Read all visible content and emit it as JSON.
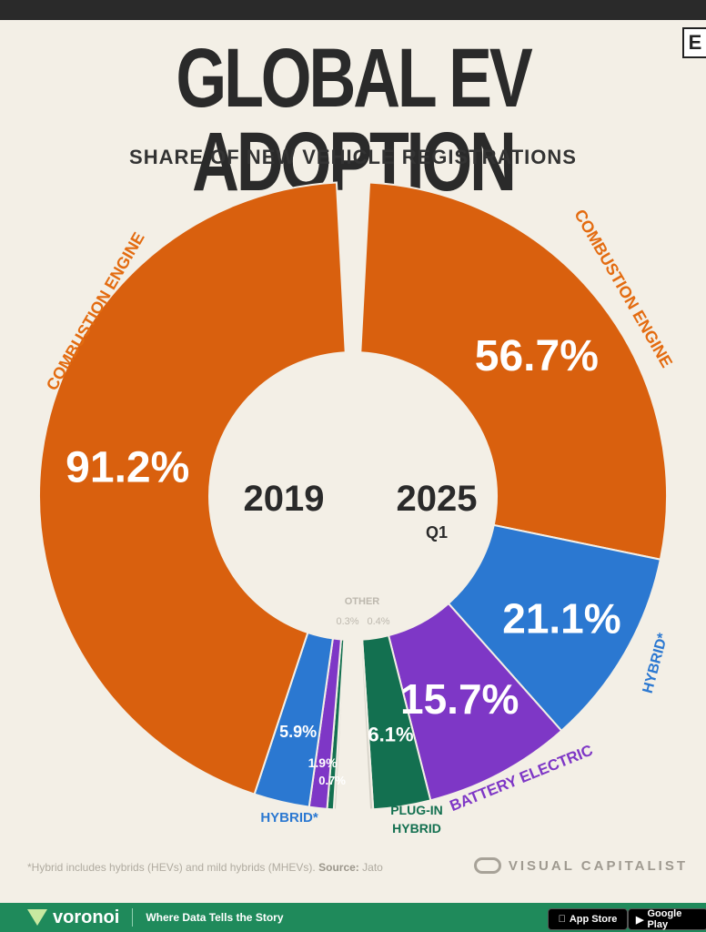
{
  "header": {
    "title": "GLOBAL EV ADOPTION",
    "subtitle": "SHARE OF NEW VEHICLE REGISTRATIONS",
    "corner_letter": "E"
  },
  "chart_data": [
    {
      "type": "pie",
      "label": "2019",
      "sublabel": "",
      "slices": [
        {
          "name": "COMBUSTION ENGINE",
          "value": 91.2,
          "value_label": "91.2%",
          "color": "#d9600e"
        },
        {
          "name": "HYBRID*",
          "value": 5.9,
          "value_label": "5.9%",
          "color": "#2b78d1"
        },
        {
          "name": "",
          "value": 1.9,
          "value_label": "1.9%",
          "color": "#7e37c6"
        },
        {
          "name": "",
          "value": 0.7,
          "value_label": "0.7%",
          "color": "#137050"
        },
        {
          "name": "OTHER",
          "value": 0.3,
          "value_label": "0.3%",
          "color": "#d4d0c6"
        }
      ]
    },
    {
      "type": "pie",
      "label": "2025",
      "sublabel": "Q1",
      "slices": [
        {
          "name": "OTHER",
          "value": 0.4,
          "value_label": "0.4%",
          "color": "#d4d0c6"
        },
        {
          "name": "PLUG-IN HYBRID",
          "value": 6.1,
          "value_label": "6.1%",
          "color": "#137050"
        },
        {
          "name": "BATTERY ELECTRIC",
          "value": 15.7,
          "value_label": "15.7%",
          "color": "#7e37c6"
        },
        {
          "name": "HYBRID*",
          "value": 21.1,
          "value_label": "21.1%",
          "color": "#2b78d1"
        },
        {
          "name": "COMBUSTION ENGINE",
          "value": 56.7,
          "value_label": "56.7%",
          "color": "#d9600e"
        }
      ]
    }
  ],
  "other_label": "OTHER",
  "footnote": {
    "text": "*Hybrid includes hybrids (HEVs) and mild hybrids (MHEVs).",
    "source_label": "Source:",
    "source": "Jato"
  },
  "brand": "VISUAL CAPITALIST",
  "footer": {
    "logo": "voronoi",
    "tagline": "Where Data Tells the Story",
    "app_store": "App Store",
    "google_play": "Google Play"
  }
}
